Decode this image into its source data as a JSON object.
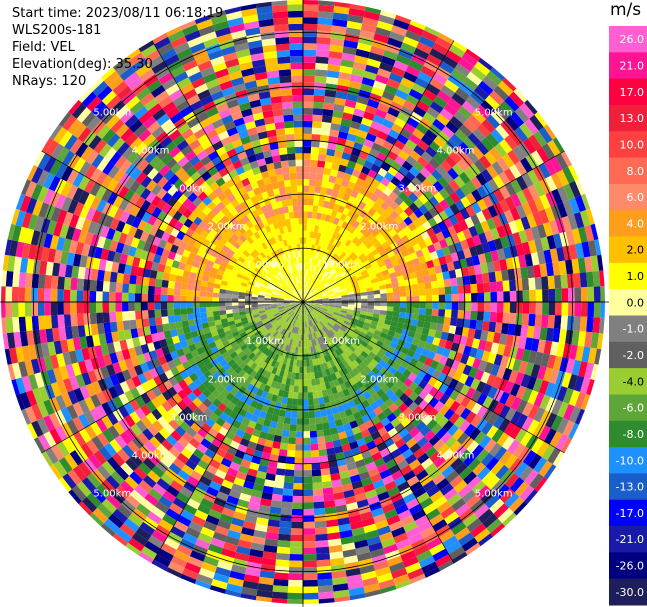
{
  "header": {
    "start_time": "Start time: 2023/08/11 06:18:19",
    "instrument": "WLS200s-181",
    "field": "Field: VEL",
    "elevation": "Elevation(deg): 35.30",
    "nrays": "NRays: 120"
  },
  "chart_data": {
    "type": "ppi",
    "field": "VEL",
    "nrays": 120,
    "elevation_deg": 35.3,
    "range_ring_labels": [
      "1.00km",
      "2.00km",
      "3.00km",
      "4.00km",
      "5.00km"
    ],
    "range_rings_km": [
      1,
      2,
      3,
      4,
      5
    ],
    "max_range_km": 5.6,
    "colorbar": {
      "unit": "m/s",
      "ticks": [
        "26.0",
        "21.0",
        "17.0",
        "13.0",
        "10.0",
        "8.0",
        "6.0",
        "4.0",
        "2.0",
        "1.0",
        "0.0",
        "-1.0",
        "-2.0",
        "-4.0",
        "-6.0",
        "-8.0",
        "-10.0",
        "-13.0",
        "-17.0",
        "-21.0",
        "-26.0",
        "-30.0"
      ],
      "colors": [
        "#ff5fd2",
        "#ff1493",
        "#ff0040",
        "#f0203a",
        "#ff4040",
        "#ff6a55",
        "#ff8a6a",
        "#ff9e1c",
        "#ffc000",
        "#ffff00",
        "#ffffa0",
        "#808080",
        "#606060",
        "#9acd32",
        "#5fa63a",
        "#2e8b2e",
        "#1e90ff",
        "#1a5ecb",
        "#0000ff",
        "#1a1aa8",
        "#000080",
        "#1e1e5a"
      ]
    },
    "near_field": {
      "north_half": "positive velocities 0 to 6 m/s (yellow/orange)",
      "south_half": "negative velocities -1 to -8 m/s (green)",
      "noise_beyond_km": 2.4
    }
  }
}
